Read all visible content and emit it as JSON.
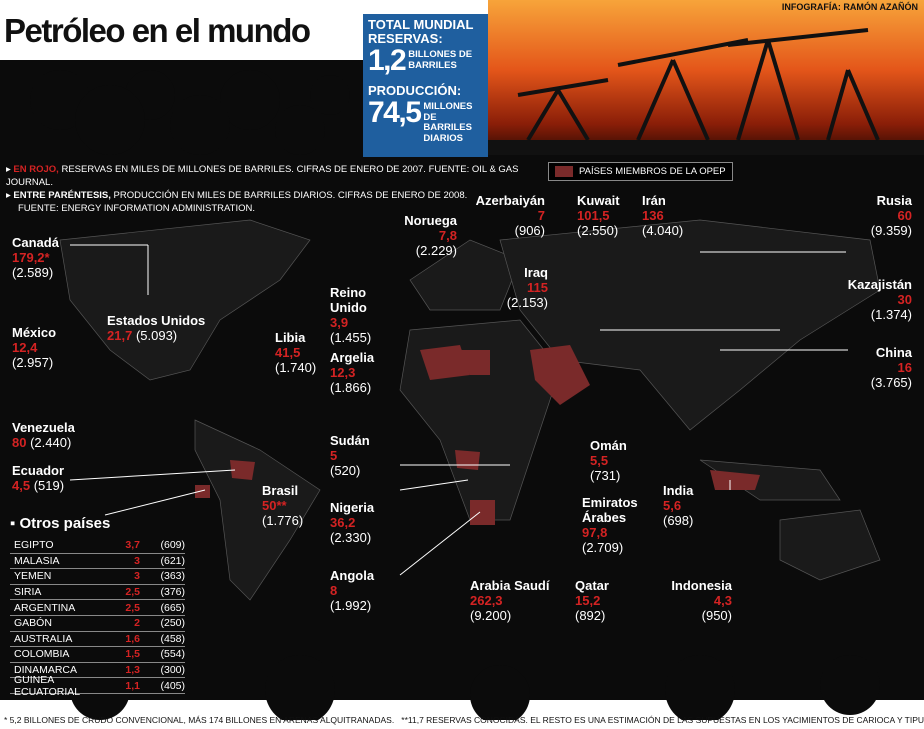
{
  "header": {
    "title": "Petróleo en el mundo",
    "credit": "INFOGRAFÍA: RAMÓN AZAÑÓN"
  },
  "totals": {
    "heading": "TOTAL MUNDIAL",
    "reserves_label": "RESERVAS:",
    "reserves_value": "1,2",
    "reserves_unit": "BILLONES DE BARRILES",
    "production_label": "PRODUCCIÓN:",
    "production_value": "74,5",
    "production_unit": "MILLONES DE BARRILES DIARIOS",
    "color": "#1f5f9f"
  },
  "notes": {
    "line1_bold": "EN ROJO,",
    "line1": " RESERVAS EN MILES DE MILLONES DE BARRILES. CIFRAS DE ENERO DE 2007. FUENTE: OIL & GAS JOURNAL.",
    "line2_bold": "ENTRE PARÉNTESIS,",
    "line2": " PRODUCCIÓN EN MILES DE BARRILES DIARIOS. CIFRAS DE ENERO DE 2008.",
    "line3": "FUENTE: ENERGY INFORMATION ADMINISTRATION."
  },
  "legend": {
    "opep": "PAÍSES MIEMBROS DE LA OPEP",
    "opep_color": "#7a2a2a",
    "reserve_color": "#d42323"
  },
  "countries": [
    {
      "name": "Canadá",
      "reserves": "179,2*",
      "production": "(2.589)"
    },
    {
      "name": "Estados Unidos",
      "reserves": "21,7",
      "production": "(5.093)"
    },
    {
      "name": "México",
      "reserves": "12,4",
      "production": "(2.957)"
    },
    {
      "name": "Venezuela",
      "reserves": "80",
      "production": "(2.440)"
    },
    {
      "name": "Ecuador",
      "reserves": "4,5",
      "production": "(519)"
    },
    {
      "name": "Brasil",
      "reserves": "50**",
      "production": "(1.776)"
    },
    {
      "name": "Noruega",
      "reserves": "7,8",
      "production": "(2.229)"
    },
    {
      "name": "Reino Unido",
      "reserves": "3,9",
      "production": "(1.455)"
    },
    {
      "name": "Libia",
      "reserves": "41,5",
      "production": "(1.740)"
    },
    {
      "name": "Argelia",
      "reserves": "12,3",
      "production": "(1.866)"
    },
    {
      "name": "Sudán",
      "reserves": "5",
      "production": "(520)"
    },
    {
      "name": "Nigeria",
      "reserves": "36,2",
      "production": "(2.330)"
    },
    {
      "name": "Angola",
      "reserves": "8",
      "production": "(1.992)"
    },
    {
      "name": "Azerbaiyán",
      "reserves": "7",
      "production": "(906)"
    },
    {
      "name": "Kuwait",
      "reserves": "101,5",
      "production": "(2.550)"
    },
    {
      "name": "Irán",
      "reserves": "136",
      "production": "(4.040)"
    },
    {
      "name": "Iraq",
      "reserves": "115",
      "production": "(2.153)"
    },
    {
      "name": "Rusia",
      "reserves": "60",
      "production": "(9.359)"
    },
    {
      "name": "Kazajistán",
      "reserves": "30",
      "production": "(1.374)"
    },
    {
      "name": "China",
      "reserves": "16",
      "production": "(3.765)"
    },
    {
      "name": "Omán",
      "reserves": "5,5",
      "production": "(731)"
    },
    {
      "name": "Emiratos Árabes",
      "reserves": "97,8",
      "production": "(2.709)"
    },
    {
      "name": "India",
      "reserves": "5,6",
      "production": "(698)"
    },
    {
      "name": "Arabia Saudí",
      "reserves": "262,3",
      "production": "(9.200)"
    },
    {
      "name": "Qatar",
      "reserves": "15,2",
      "production": "(892)"
    },
    {
      "name": "Indonesia",
      "reserves": "4,3",
      "production": "(950)"
    }
  ],
  "others": {
    "heading": "Otros países",
    "rows": [
      {
        "country": "EGIPTO",
        "reserves": "3,7",
        "production": "(609)"
      },
      {
        "country": "MALASIA",
        "reserves": "3",
        "production": "(621)"
      },
      {
        "country": "YEMEN",
        "reserves": "3",
        "production": "(363)"
      },
      {
        "country": "SIRIA",
        "reserves": "2,5",
        "production": "(376)"
      },
      {
        "country": "ARGENTINA",
        "reserves": "2,5",
        "production": "(665)"
      },
      {
        "country": "GABÓN",
        "reserves": "2",
        "production": "(250)"
      },
      {
        "country": "AUSTRALIA",
        "reserves": "1,6",
        "production": "(458)"
      },
      {
        "country": "COLOMBIA",
        "reserves": "1,5",
        "production": "(554)"
      },
      {
        "country": "DINAMARCA",
        "reserves": "1,3",
        "production": "(300)"
      },
      {
        "country": "GUINEA ECUATORIAL",
        "reserves": "1,1",
        "production": "(405)"
      }
    ]
  },
  "footnotes": {
    "one": "* 5,2 BILLONES DE CRUDO CONVENCIONAL, MÁS 174 BILLONES EN ARENAS ALQUITRANADAS.",
    "two": "**11,7 RESERVAS CONOCIDAS. EL RESTO ES UNA ESTIMACIÓN DE LAS SUPUESTAS EN LOS YACIMIENTOS DE CARIOCA  Y TIPU."
  }
}
